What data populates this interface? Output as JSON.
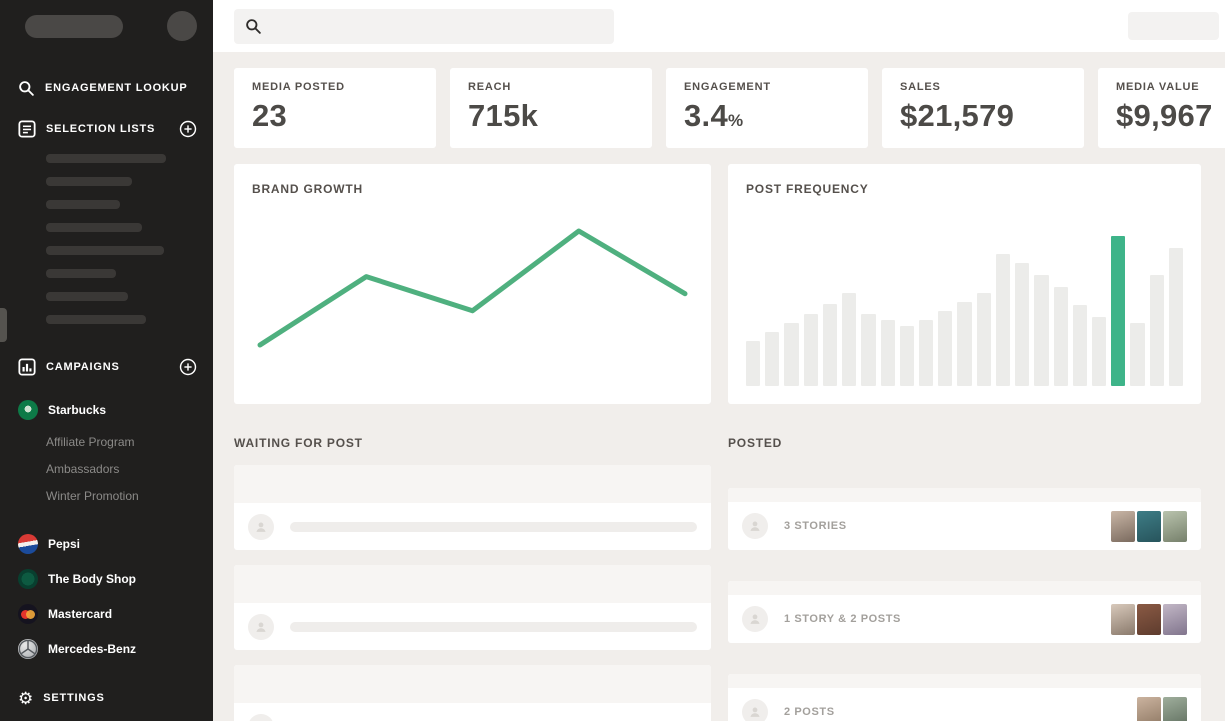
{
  "sidebar": {
    "lookup_label": "ENGAGEMENT LOOKUP",
    "selection_label": "SELECTION LISTS",
    "campaigns_label": "CAMPAIGNS",
    "settings_label": "SETTINGS",
    "skeleton_widths": [
      120,
      86,
      74,
      96,
      118,
      70,
      82,
      100
    ],
    "campaigns": [
      {
        "name": "Starbucks",
        "children": [
          "Affiliate Program",
          "Ambassadors",
          "Winter Promotion"
        ]
      },
      {
        "name": "Pepsi"
      },
      {
        "name": "The Body Shop"
      },
      {
        "name": "Mastercard"
      },
      {
        "name": "Mercedes-Benz"
      }
    ]
  },
  "topbar": {
    "search_placeholder": ""
  },
  "stats": [
    {
      "label": "MEDIA POSTED",
      "value": "23",
      "suffix": ""
    },
    {
      "label": "REACH",
      "value": "715k",
      "suffix": ""
    },
    {
      "label": "ENGAGEMENT",
      "value": "3.4",
      "suffix": "%"
    },
    {
      "label": "SALES",
      "value": "$21,579",
      "suffix": ""
    },
    {
      "label": "MEDIA VALUE",
      "value": "$9,967",
      "suffix": ""
    }
  ],
  "chart_data": [
    {
      "type": "line",
      "title": "BRAND GROWTH",
      "x": [
        1,
        2,
        3,
        4,
        5
      ],
      "values": [
        22,
        46,
        34,
        62,
        40
      ],
      "color": "#4fb07f",
      "grid": false,
      "legend": "none"
    },
    {
      "type": "bar",
      "title": "POST FREQUENCY",
      "values": [
        30,
        36,
        42,
        48,
        55,
        62,
        48,
        44,
        40,
        44,
        50,
        56,
        62,
        88,
        82,
        74,
        66,
        54,
        46,
        100,
        42,
        74,
        92
      ],
      "highlight_index": 19,
      "bar_color": "#ececea",
      "highlight_color": "#3eb489",
      "grid": false,
      "legend": "none"
    }
  ],
  "lists": {
    "waiting": {
      "title": "WAITING FOR POST",
      "items": [
        {},
        {},
        {}
      ]
    },
    "posted": {
      "title": "POSTED",
      "items": [
        {
          "label": "3 STORIES",
          "thumbs": [
            "linear-gradient(160deg,#c9b6a6,#7a6a5e)",
            "linear-gradient(160deg,#3e7d86,#27545c)",
            "linear-gradient(160deg,#b9c3ad,#76806b)"
          ]
        },
        {
          "label": "1 STORY & 2 POSTS",
          "thumbs": [
            "linear-gradient(160deg,#d8c9bb,#8a7a6c)",
            "linear-gradient(160deg,#8a5a44,#5e3c2e)",
            "linear-gradient(160deg,#c2b7c6,#81758d)"
          ]
        },
        {
          "label": "2 POSTS",
          "thumbs": [
            "linear-gradient(160deg,#cbb39f,#8d7762)",
            "linear-gradient(160deg,#9fae9c,#5f6e5e)"
          ]
        }
      ]
    }
  },
  "icons": {
    "search": "magnifier",
    "selection_lists": "list-box",
    "campaigns": "bar-chart-box",
    "add": "plus-circle",
    "settings_glyph": "⚙",
    "avatar_placeholder": "person"
  },
  "colors": {
    "sidebar_bg": "#201f1e",
    "main_bg": "#f1eeeb",
    "card_bg": "#ffffff",
    "accent_green": "#3eb489",
    "line_green": "#4fb07f",
    "text_dark": "#4c4a47",
    "text_muted": "#a3a09c"
  }
}
